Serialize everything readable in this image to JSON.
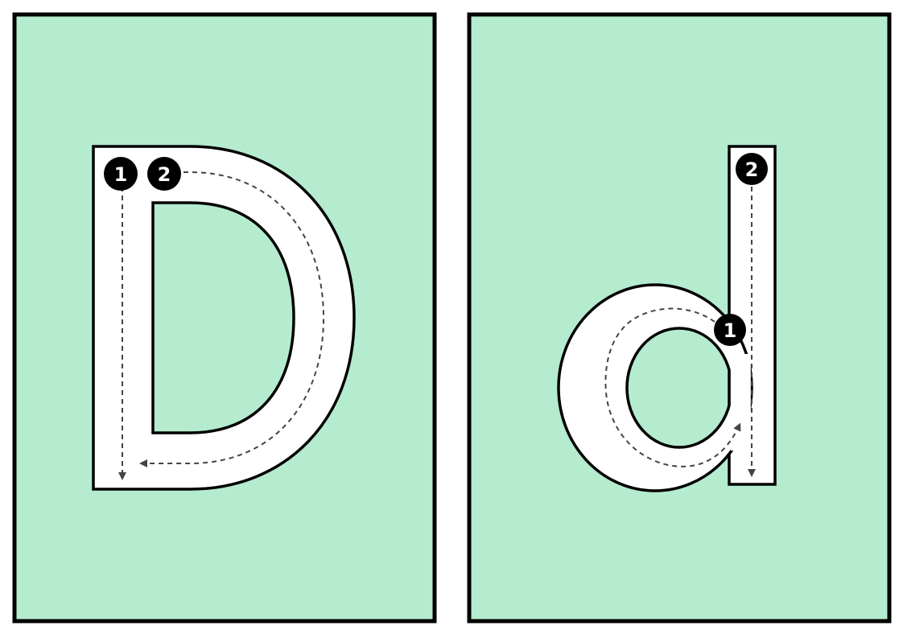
{
  "colors": {
    "card_fill": "#b5ebce",
    "card_border": "#000000",
    "letter_fill": "#ffffff",
    "letter_outline": "#000000",
    "guide_line": "#444444",
    "badge_fill": "#000000",
    "badge_text": "#ffffff"
  },
  "cards": [
    {
      "name": "uppercase-d-card",
      "letter": "D",
      "strokes": [
        {
          "order": "1"
        },
        {
          "order": "2"
        }
      ]
    },
    {
      "name": "lowercase-d-card",
      "letter": "d",
      "strokes": [
        {
          "order": "1"
        },
        {
          "order": "2"
        }
      ]
    }
  ]
}
